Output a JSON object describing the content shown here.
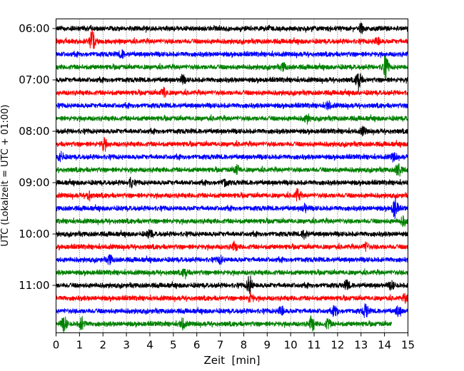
{
  "chart_data": {
    "type": "line",
    "title": "",
    "xlabel": "Zeit  [min]",
    "ylabel": "UTC (Lokalzeit = UTC + 01:00)",
    "xlim": [
      0,
      15
    ],
    "x_ticks": [
      "0",
      "1",
      "2",
      "3",
      "4",
      "5",
      "6",
      "7",
      "8",
      "9",
      "10",
      "11",
      "12",
      "13",
      "14",
      "15"
    ],
    "y_ticks": [
      {
        "label": "06:00",
        "row": 0
      },
      {
        "label": "07:00",
        "row": 4
      },
      {
        "label": "08:00",
        "row": 8
      },
      {
        "label": "09:00",
        "row": 12
      },
      {
        "label": "10:00",
        "row": 16
      },
      {
        "label": "11:00",
        "row": 20
      }
    ],
    "grid": "vertical-dotted",
    "row_minutes": 15,
    "row_colors": [
      "#000000",
      "#ff0000",
      "#0000ff",
      "#008000"
    ],
    "rows": [
      {
        "start": "06:00",
        "color": "#000000",
        "events": [
          [
            13.0,
            1.3
          ]
        ]
      },
      {
        "start": "06:15",
        "color": "#ff0000",
        "events": [
          [
            1.55,
            3.5
          ],
          [
            13.7,
            1.2
          ]
        ]
      },
      {
        "start": "06:30",
        "color": "#0000ff",
        "events": [
          [
            2.8,
            1.1
          ]
        ]
      },
      {
        "start": "06:45",
        "color": "#008000",
        "events": [
          [
            14.05,
            3.8
          ],
          [
            9.7,
            1.1
          ]
        ]
      },
      {
        "start": "07:00",
        "color": "#000000",
        "events": [
          [
            12.9,
            3.3
          ],
          [
            5.4,
            1.2
          ]
        ]
      },
      {
        "start": "07:15",
        "color": "#ff0000",
        "events": [
          [
            4.6,
            1.6
          ]
        ]
      },
      {
        "start": "07:30",
        "color": "#0000ff",
        "events": [
          [
            11.6,
            1.2
          ]
        ]
      },
      {
        "start": "07:45",
        "color": "#008000",
        "events": [
          [
            10.7,
            1.2
          ]
        ]
      },
      {
        "start": "08:00",
        "color": "#000000",
        "events": [
          [
            13.1,
            1.2
          ]
        ]
      },
      {
        "start": "08:15",
        "color": "#ff0000",
        "events": [
          [
            2.05,
            1.9
          ]
        ]
      },
      {
        "start": "08:30",
        "color": "#0000ff",
        "events": [
          [
            0.2,
            1.6
          ],
          [
            14.4,
            1.3
          ]
        ]
      },
      {
        "start": "08:45",
        "color": "#008000",
        "events": [
          [
            7.7,
            1.4
          ],
          [
            14.6,
            2.3
          ]
        ]
      },
      {
        "start": "09:00",
        "color": "#000000",
        "events": [
          [
            3.2,
            1.3
          ],
          [
            7.2,
            1.1
          ]
        ]
      },
      {
        "start": "09:15",
        "color": "#ff0000",
        "events": [
          [
            10.3,
            2.0
          ],
          [
            1.4,
            1.2
          ]
        ]
      },
      {
        "start": "09:30",
        "color": "#0000ff",
        "events": [
          [
            14.45,
            3.4
          ],
          [
            10.6,
            1.1
          ]
        ]
      },
      {
        "start": "09:45",
        "color": "#008000",
        "events": [
          [
            14.8,
            1.3
          ]
        ]
      },
      {
        "start": "10:00",
        "color": "#000000",
        "events": [
          [
            10.6,
            1.4
          ],
          [
            4.0,
            1.2
          ]
        ]
      },
      {
        "start": "10:15",
        "color": "#ff0000",
        "events": [
          [
            7.6,
            1.2
          ],
          [
            13.2,
            1.2
          ]
        ]
      },
      {
        "start": "10:30",
        "color": "#0000ff",
        "events": [
          [
            2.3,
            1.3
          ],
          [
            7.0,
            1.1
          ]
        ]
      },
      {
        "start": "10:45",
        "color": "#008000",
        "events": [
          [
            5.5,
            1.4
          ]
        ]
      },
      {
        "start": "11:00",
        "color": "#000000",
        "events": [
          [
            8.25,
            3.2
          ],
          [
            12.4,
            1.4
          ],
          [
            14.3,
            1.2
          ]
        ]
      },
      {
        "start": "11:15",
        "color": "#ff0000",
        "events": [
          [
            8.3,
            1.4
          ],
          [
            14.9,
            1.2
          ]
        ]
      },
      {
        "start": "11:30",
        "color": "#0000ff",
        "events": [
          [
            13.2,
            2.2
          ],
          [
            9.6,
            1.6
          ],
          [
            11.9,
            1.6
          ],
          [
            14.6,
            1.6
          ]
        ]
      },
      {
        "start": "11:45",
        "color": "#008000",
        "events": [
          [
            0.35,
            2.4
          ],
          [
            1.1,
            2.1
          ],
          [
            5.4,
            1.6
          ],
          [
            10.9,
            2.3
          ],
          [
            11.6,
            1.6
          ]
        ],
        "end": 14.3
      }
    ]
  }
}
